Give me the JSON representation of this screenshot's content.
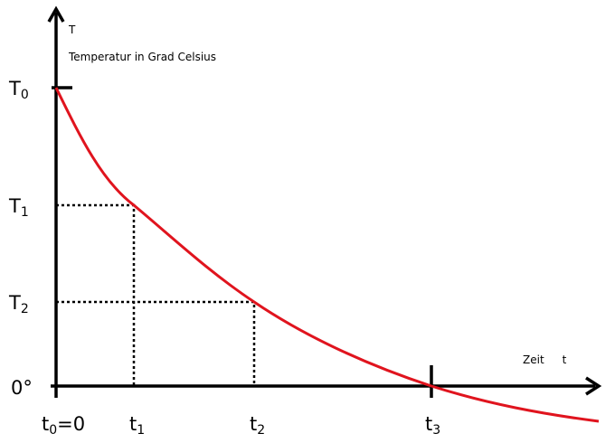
{
  "axes": {
    "y_symbol": "T",
    "y_title": "Temperatur in Grad Celsius",
    "x_title": "Zeit",
    "x_symbol": "t"
  },
  "y_labels": [
    {
      "base": "T",
      "sub": "0"
    },
    {
      "base": "T",
      "sub": "1"
    },
    {
      "base": "T",
      "sub": "2"
    },
    {
      "text": "0°"
    }
  ],
  "x_labels": [
    {
      "base": "t",
      "sub": "0",
      "suffix": "=0"
    },
    {
      "base": "t",
      "sub": "1"
    },
    {
      "base": "t",
      "sub": "2"
    },
    {
      "base": "t",
      "sub": "3"
    }
  ]
}
